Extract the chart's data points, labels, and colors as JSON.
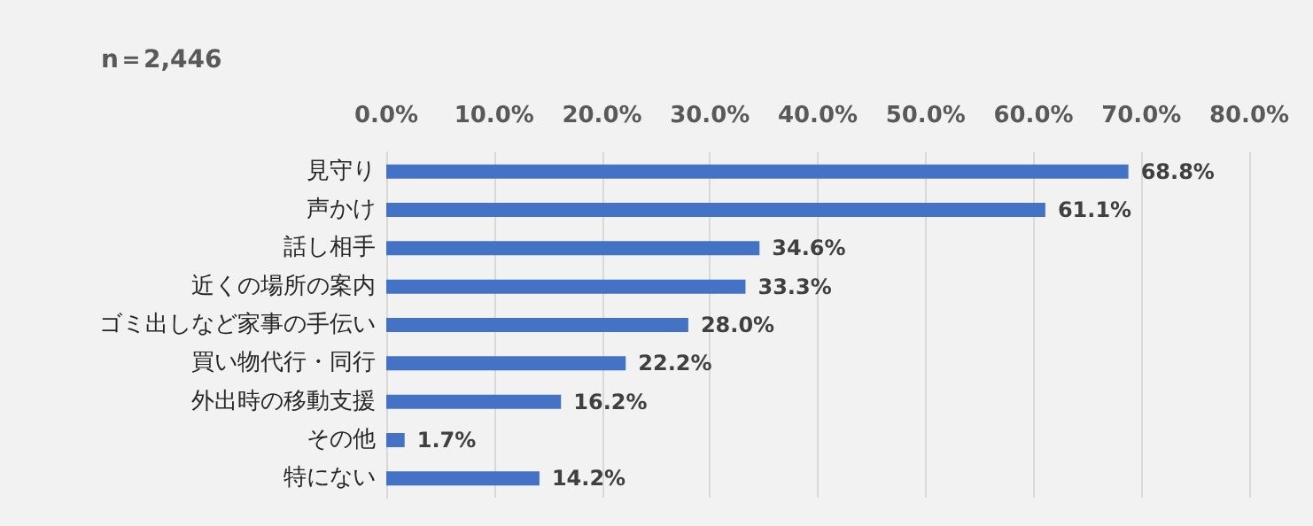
{
  "chart_data": {
    "type": "bar",
    "orientation": "horizontal",
    "subtitle": "n＝2,446",
    "categories": [
      "見守り",
      "声かけ",
      "話し相手",
      "近くの場所の案内",
      "ゴミ出しなど家事の手伝い",
      "買い物代行・同行",
      "外出時の移動支援",
      "その他",
      "特にない"
    ],
    "values": [
      68.8,
      61.1,
      34.6,
      33.3,
      28.0,
      22.2,
      16.2,
      1.7,
      14.2
    ],
    "value_labels": [
      "68.8%",
      "61.1%",
      "34.6%",
      "33.3%",
      "28.0%",
      "22.2%",
      "16.2%",
      "1.7%",
      "14.2%"
    ],
    "color": "#4472c4",
    "xlim": [
      0,
      80
    ],
    "xticks": [
      {
        "value": 0,
        "label": "0.0%"
      },
      {
        "value": 10,
        "label": "10.0%"
      },
      {
        "value": 20,
        "label": "20.0%"
      },
      {
        "value": 30,
        "label": "30.0%"
      },
      {
        "value": 40,
        "label": "40.0%"
      },
      {
        "value": 50,
        "label": "50.0%"
      },
      {
        "value": 60,
        "label": "60.0%"
      },
      {
        "value": 70,
        "label": "70.0%"
      },
      {
        "value": 80,
        "label": "80.0%"
      }
    ],
    "grid": "x"
  }
}
